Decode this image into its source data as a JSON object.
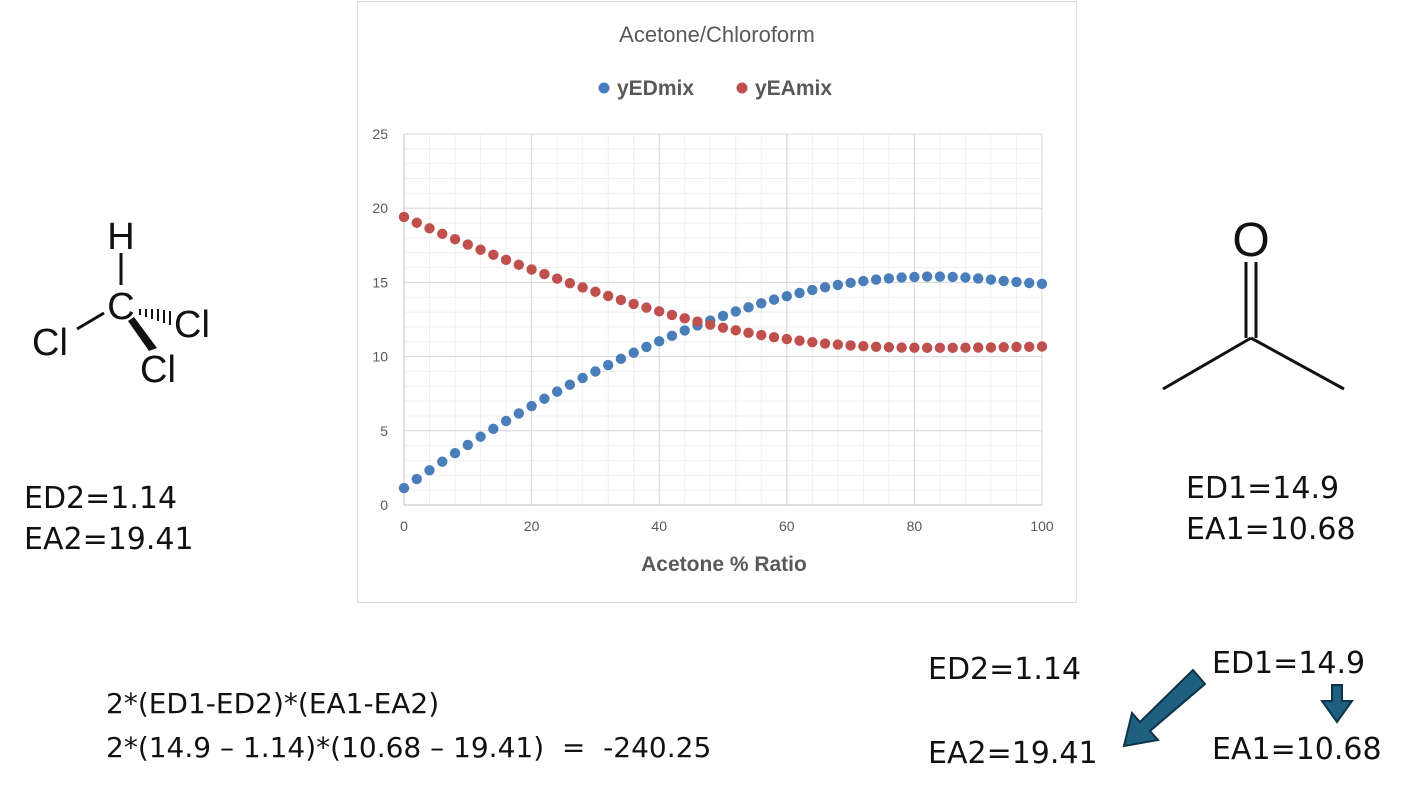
{
  "chart_data": {
    "type": "scatter",
    "title": "Acetone/Chloroform",
    "xlabel": "Acetone % Ratio",
    "ylabel": "",
    "xlim": [
      0,
      100
    ],
    "ylim": [
      0,
      25
    ],
    "xticks": [
      0,
      20,
      40,
      60,
      80,
      100
    ],
    "yticks": [
      0,
      5,
      10,
      15,
      20,
      25
    ],
    "grid": true,
    "legend_position": "top",
    "x": [
      0,
      2,
      4,
      6,
      8,
      10,
      12,
      14,
      16,
      18,
      20,
      22,
      24,
      26,
      28,
      30,
      32,
      34,
      36,
      38,
      40,
      42,
      44,
      46,
      48,
      50,
      52,
      54,
      56,
      58,
      60,
      62,
      64,
      66,
      68,
      70,
      72,
      74,
      76,
      78,
      80,
      82,
      84,
      86,
      88,
      90,
      92,
      94,
      96,
      98,
      100
    ],
    "series": [
      {
        "name": "yEDmix",
        "color": "#4a7ebb",
        "values": [
          1.14,
          1.75,
          2.34,
          2.92,
          3.49,
          4.05,
          4.6,
          5.13,
          5.66,
          6.17,
          6.67,
          7.16,
          7.64,
          8.11,
          8.56,
          9.0,
          9.43,
          9.85,
          10.26,
          10.65,
          11.03,
          11.4,
          11.76,
          12.1,
          12.43,
          12.74,
          13.04,
          13.32,
          13.59,
          13.84,
          14.07,
          14.29,
          14.49,
          14.67,
          14.83,
          14.97,
          15.09,
          15.19,
          15.27,
          15.33,
          15.37,
          15.39,
          15.39,
          15.37,
          15.33,
          15.27,
          15.19,
          15.1,
          15.03,
          14.96,
          14.9
        ]
      },
      {
        "name": "yEAmix",
        "color": "#c0504d",
        "values": [
          19.41,
          19.02,
          18.64,
          18.27,
          17.91,
          17.55,
          17.2,
          16.86,
          16.52,
          16.19,
          15.87,
          15.56,
          15.25,
          14.95,
          14.66,
          14.37,
          14.09,
          13.82,
          13.55,
          13.3,
          13.05,
          12.81,
          12.58,
          12.36,
          12.15,
          11.95,
          11.77,
          11.6,
          11.45,
          11.31,
          11.18,
          11.07,
          10.97,
          10.88,
          10.81,
          10.75,
          10.7,
          10.66,
          10.63,
          10.61,
          10.6,
          10.59,
          10.59,
          10.59,
          10.6,
          10.61,
          10.62,
          10.63,
          10.65,
          10.66,
          10.68
        ]
      }
    ]
  },
  "chloroform": {
    "atom_h": "H",
    "atom_c": "C",
    "atom_cl_left": "Cl",
    "atom_cl_right": "Cl",
    "atom_cl_bottom": "Cl",
    "ed_label": "ED2=1.14",
    "ea_label": "EA2=19.41"
  },
  "acetone": {
    "atom_o": "O",
    "ed_label": "ED1=14.9",
    "ea_label": "EA1=10.68"
  },
  "formula": {
    "line1": "2*(ED1-ED2)*(EA1-EA2)",
    "line2": "2*(14.9 – 1.14)*(10.68 – 19.41)  =  -240.25"
  },
  "pairing": {
    "ed2": "ED2=1.14",
    "ed1": "ED1=14.9",
    "ea2": "EA2=19.41",
    "ea1": "EA1=10.68",
    "arrow_color": "#1f5f7f"
  }
}
